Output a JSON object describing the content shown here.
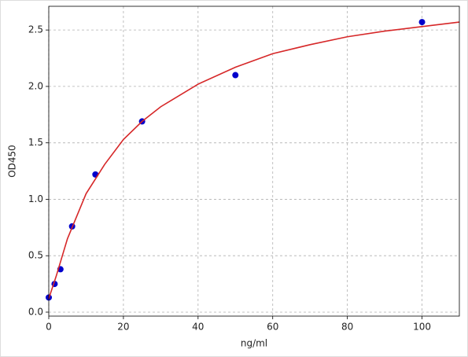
{
  "chart_data": {
    "type": "scatter",
    "xlabel": "ng/ml",
    "ylabel": "OD450",
    "xlim": [
      0,
      110
    ],
    "ylim": [
      -0.035,
      2.71
    ],
    "xticks": [
      0,
      20,
      40,
      60,
      80,
      100
    ],
    "yticks": [
      {
        "value": 0,
        "label": "0.0"
      },
      0.5,
      {
        "value": 1,
        "label": "1.0"
      },
      1.5,
      {
        "value": 2,
        "label": "2.0"
      },
      2.5
    ],
    "grid": true,
    "series": [
      {
        "type": "scatter",
        "color": "#0000cc",
        "x": [
          0,
          1.5625,
          3.125,
          6.25,
          12.5,
          25,
          50,
          100
        ],
        "values": [
          0.13,
          0.25,
          0.38,
          0.76,
          1.22,
          1.69,
          2.1,
          2.57
        ]
      },
      {
        "type": "line",
        "color": "#d62728",
        "x": [
          0,
          2,
          5,
          10,
          15,
          20,
          25,
          30,
          40,
          50,
          60,
          70,
          80,
          90,
          100,
          110
        ],
        "values": [
          0.12,
          0.32,
          0.65,
          1.05,
          1.31,
          1.53,
          1.69,
          1.82,
          2.02,
          2.17,
          2.29,
          2.37,
          2.44,
          2.49,
          2.53,
          2.57
        ]
      }
    ]
  }
}
